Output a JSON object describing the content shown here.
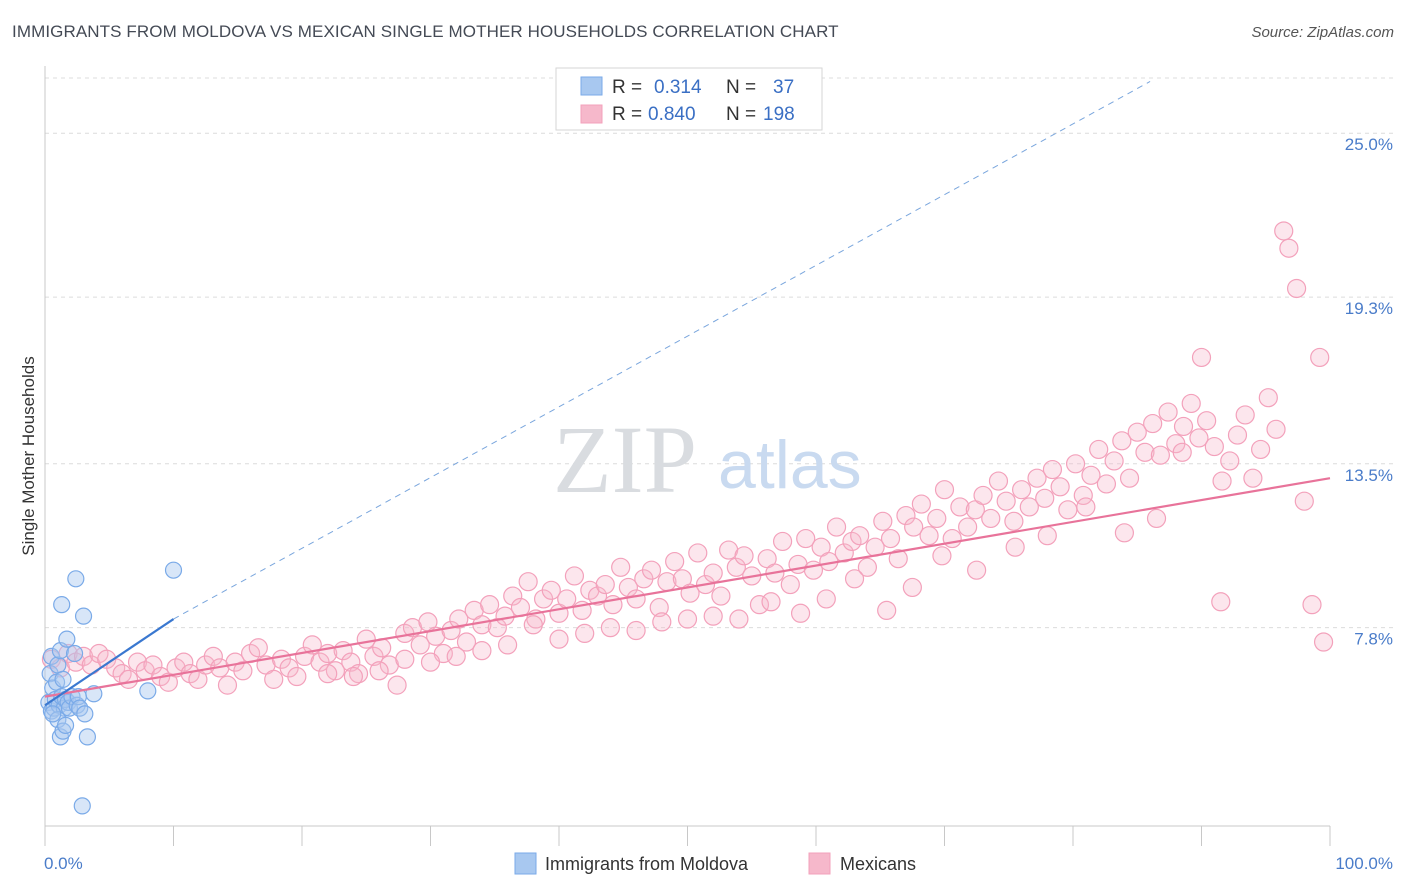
{
  "title": "IMMIGRANTS FROM MOLDOVA VS MEXICAN SINGLE MOTHER HOUSEHOLDS CORRELATION CHART",
  "source": "Source: ZipAtlas.com",
  "watermark": {
    "part1": "ZIP",
    "part2": "atlas"
  },
  "legend": {
    "r_label": "R =",
    "n_label": "N =",
    "rows": [
      {
        "r": "0.314",
        "n": "37",
        "color": "#a8c8f0"
      },
      {
        "r": "0.840",
        "n": "198",
        "color": "#f6b8cb"
      }
    ]
  },
  "bottom_legend": [
    {
      "label": "Immigrants from Moldova",
      "color": "#a8c8f0"
    },
    {
      "label": "Mexicans",
      "color": "#f6b8cb"
    }
  ],
  "chart_data": {
    "type": "scatter",
    "title": "IMMIGRANTS FROM MOLDOVA VS MEXICAN SINGLE MOTHER HOUSEHOLDS CORRELATION CHART",
    "xlabel": "",
    "ylabel": "Single Mother Households",
    "xlim": [
      0,
      100
    ],
    "ylim": [
      0.9,
      27.2
    ],
    "x_tick_labels": [
      "0.0%",
      "100.0%"
    ],
    "y_ticks": [
      7.8,
      13.5,
      19.3,
      25.0
    ],
    "y_tick_labels": [
      "7.8%",
      "13.5%",
      "19.3%",
      "25.0%"
    ],
    "grid": "horizontal dashed",
    "legend_placement": "top-center",
    "series": [
      {
        "name": "Immigrants from Moldova",
        "color": "#7aaae8",
        "line_color": "#3a78d0",
        "trend": {
          "x0": 0.0,
          "y0": 5.1,
          "x1": 10.0,
          "y1": 8.1
        },
        "trend_extension": {
          "x0": 10.0,
          "y0": 8.1,
          "x1": 86.0,
          "y1": 26.8
        },
        "points": [
          [
            0.5,
            6.8
          ],
          [
            0.4,
            6.2
          ],
          [
            0.6,
            5.7
          ],
          [
            0.3,
            5.2
          ],
          [
            0.5,
            4.9
          ],
          [
            0.7,
            5.0
          ],
          [
            0.8,
            5.3
          ],
          [
            0.9,
            5.9
          ],
          [
            1.0,
            6.5
          ],
          [
            1.1,
            5.1
          ],
          [
            1.2,
            7.0
          ],
          [
            1.3,
            5.4
          ],
          [
            1.4,
            6.0
          ],
          [
            1.5,
            5.0
          ],
          [
            1.6,
            5.3
          ],
          [
            1.8,
            5.2
          ],
          [
            1.9,
            5.0
          ],
          [
            2.1,
            5.4
          ],
          [
            1.0,
            4.6
          ],
          [
            1.2,
            4.0
          ],
          [
            1.4,
            4.2
          ],
          [
            1.6,
            4.4
          ],
          [
            1.3,
            8.6
          ],
          [
            1.7,
            7.4
          ],
          [
            2.3,
            6.9
          ],
          [
            2.4,
            9.5
          ],
          [
            2.5,
            5.1
          ],
          [
            2.6,
            5.4
          ],
          [
            2.7,
            5.0
          ],
          [
            3.0,
            8.2
          ],
          [
            3.1,
            4.8
          ],
          [
            3.3,
            4.0
          ],
          [
            3.8,
            5.5
          ],
          [
            0.6,
            4.8
          ],
          [
            2.9,
            1.6
          ],
          [
            10.0,
            9.8
          ],
          [
            8.0,
            5.6
          ]
        ]
      },
      {
        "name": "Mexicans",
        "color": "#f3a1bb",
        "line_color": "#e8739a",
        "trend": {
          "x0": 0.0,
          "y0": 5.4,
          "x1": 100.0,
          "y1": 13.0
        },
        "points": [
          [
            0.5,
            6.7
          ],
          [
            1.2,
            6.4
          ],
          [
            1.8,
            6.9
          ],
          [
            2.4,
            6.6
          ],
          [
            3.0,
            6.8
          ],
          [
            3.6,
            6.5
          ],
          [
            4.2,
            6.9
          ],
          [
            4.8,
            6.7
          ],
          [
            5.5,
            6.4
          ],
          [
            6.0,
            6.2
          ],
          [
            6.5,
            6.0
          ],
          [
            7.2,
            6.6
          ],
          [
            7.8,
            6.3
          ],
          [
            8.4,
            6.5
          ],
          [
            9.0,
            6.1
          ],
          [
            9.6,
            5.9
          ],
          [
            10.2,
            6.4
          ],
          [
            10.8,
            6.6
          ],
          [
            11.3,
            6.2
          ],
          [
            11.9,
            6.0
          ],
          [
            12.5,
            6.5
          ],
          [
            13.1,
            6.8
          ],
          [
            13.6,
            6.4
          ],
          [
            14.2,
            5.8
          ],
          [
            14.8,
            6.6
          ],
          [
            15.4,
            6.3
          ],
          [
            16.0,
            6.9
          ],
          [
            16.6,
            7.1
          ],
          [
            17.2,
            6.5
          ],
          [
            17.8,
            6.0
          ],
          [
            18.4,
            6.7
          ],
          [
            19.0,
            6.4
          ],
          [
            19.6,
            6.1
          ],
          [
            20.2,
            6.8
          ],
          [
            20.8,
            7.2
          ],
          [
            21.4,
            6.6
          ],
          [
            22.0,
            6.9
          ],
          [
            22.6,
            6.3
          ],
          [
            23.2,
            7.0
          ],
          [
            23.8,
            6.6
          ],
          [
            24.4,
            6.2
          ],
          [
            25.0,
            7.4
          ],
          [
            25.6,
            6.8
          ],
          [
            26.2,
            7.1
          ],
          [
            26.8,
            6.5
          ],
          [
            27.4,
            5.8
          ],
          [
            28.0,
            7.6
          ],
          [
            28.6,
            7.8
          ],
          [
            29.2,
            7.2
          ],
          [
            29.8,
            8.0
          ],
          [
            30.4,
            7.5
          ],
          [
            31.0,
            6.9
          ],
          [
            31.6,
            7.7
          ],
          [
            32.2,
            8.1
          ],
          [
            32.8,
            7.3
          ],
          [
            33.4,
            8.4
          ],
          [
            34.0,
            7.9
          ],
          [
            34.6,
            8.6
          ],
          [
            35.2,
            7.8
          ],
          [
            35.8,
            8.2
          ],
          [
            36.4,
            8.9
          ],
          [
            37.0,
            8.5
          ],
          [
            37.6,
            9.4
          ],
          [
            38.2,
            8.1
          ],
          [
            38.8,
            8.8
          ],
          [
            39.4,
            9.1
          ],
          [
            40.0,
            8.3
          ],
          [
            40.6,
            8.8
          ],
          [
            41.2,
            9.6
          ],
          [
            41.8,
            8.4
          ],
          [
            42.4,
            9.1
          ],
          [
            43.0,
            8.9
          ],
          [
            43.6,
            9.3
          ],
          [
            44.2,
            8.6
          ],
          [
            44.8,
            9.9
          ],
          [
            45.4,
            9.2
          ],
          [
            46.0,
            8.8
          ],
          [
            46.6,
            9.5
          ],
          [
            47.2,
            9.8
          ],
          [
            47.8,
            8.5
          ],
          [
            48.4,
            9.4
          ],
          [
            49.0,
            10.1
          ],
          [
            49.6,
            9.5
          ],
          [
            50.2,
            9.0
          ],
          [
            50.8,
            10.4
          ],
          [
            51.4,
            9.3
          ],
          [
            52.0,
            9.7
          ],
          [
            52.6,
            8.9
          ],
          [
            53.2,
            10.5
          ],
          [
            53.8,
            9.9
          ],
          [
            54.4,
            10.3
          ],
          [
            55.0,
            9.6
          ],
          [
            55.6,
            8.6
          ],
          [
            56.2,
            10.2
          ],
          [
            56.8,
            9.7
          ],
          [
            57.4,
            10.8
          ],
          [
            58.0,
            9.3
          ],
          [
            58.6,
            10.0
          ],
          [
            59.2,
            10.9
          ],
          [
            59.8,
            9.8
          ],
          [
            60.4,
            10.6
          ],
          [
            61.0,
            10.1
          ],
          [
            61.6,
            11.3
          ],
          [
            62.2,
            10.4
          ],
          [
            62.8,
            10.8
          ],
          [
            63.4,
            11.0
          ],
          [
            64.0,
            9.9
          ],
          [
            64.6,
            10.6
          ],
          [
            65.2,
            11.5
          ],
          [
            65.8,
            10.9
          ],
          [
            66.4,
            10.2
          ],
          [
            67.0,
            11.7
          ],
          [
            67.6,
            11.3
          ],
          [
            68.2,
            12.1
          ],
          [
            68.8,
            11.0
          ],
          [
            69.4,
            11.6
          ],
          [
            70.0,
            12.6
          ],
          [
            70.6,
            10.9
          ],
          [
            71.2,
            12.0
          ],
          [
            71.8,
            11.3
          ],
          [
            72.4,
            11.9
          ],
          [
            73.0,
            12.4
          ],
          [
            73.6,
            11.6
          ],
          [
            74.2,
            12.9
          ],
          [
            74.8,
            12.2
          ],
          [
            75.4,
            11.5
          ],
          [
            76.0,
            12.6
          ],
          [
            76.6,
            12.0
          ],
          [
            77.2,
            13.0
          ],
          [
            77.8,
            12.3
          ],
          [
            78.4,
            13.3
          ],
          [
            79.0,
            12.7
          ],
          [
            79.6,
            11.9
          ],
          [
            80.2,
            13.5
          ],
          [
            80.8,
            12.4
          ],
          [
            81.4,
            13.1
          ],
          [
            82.0,
            14.0
          ],
          [
            82.6,
            12.8
          ],
          [
            83.2,
            13.6
          ],
          [
            83.8,
            14.3
          ],
          [
            84.4,
            13.0
          ],
          [
            85.0,
            14.6
          ],
          [
            85.6,
            13.9
          ],
          [
            86.2,
            14.9
          ],
          [
            86.8,
            13.8
          ],
          [
            87.4,
            15.3
          ],
          [
            88.0,
            14.2
          ],
          [
            88.6,
            14.8
          ],
          [
            89.2,
            15.6
          ],
          [
            89.8,
            14.4
          ],
          [
            90.4,
            15.0
          ],
          [
            91.0,
            14.1
          ],
          [
            91.6,
            12.9
          ],
          [
            92.2,
            13.6
          ],
          [
            92.8,
            14.5
          ],
          [
            93.4,
            15.2
          ],
          [
            94.0,
            13.0
          ],
          [
            94.6,
            14.0
          ],
          [
            95.2,
            15.8
          ],
          [
            95.8,
            14.7
          ],
          [
            96.4,
            21.6
          ],
          [
            96.8,
            21.0
          ],
          [
            97.4,
            19.6
          ],
          [
            98.0,
            12.2
          ],
          [
            98.6,
            8.6
          ],
          [
            99.2,
            17.2
          ],
          [
            99.5,
            7.3
          ],
          [
            90.0,
            17.2
          ],
          [
            91.5,
            8.7
          ],
          [
            88.5,
            13.9
          ],
          [
            86.5,
            11.6
          ],
          [
            84.0,
            11.1
          ],
          [
            81.0,
            12.0
          ],
          [
            78.0,
            11.0
          ],
          [
            75.5,
            10.6
          ],
          [
            72.5,
            9.8
          ],
          [
            69.8,
            10.3
          ],
          [
            67.5,
            9.2
          ],
          [
            65.5,
            8.4
          ],
          [
            63.0,
            9.5
          ],
          [
            60.8,
            8.8
          ],
          [
            58.8,
            8.3
          ],
          [
            56.5,
            8.7
          ],
          [
            54.0,
            8.1
          ],
          [
            52.0,
            8.2
          ],
          [
            50.0,
            8.1
          ],
          [
            48.0,
            8.0
          ],
          [
            46.0,
            7.7
          ],
          [
            44.0,
            7.8
          ],
          [
            42.0,
            7.6
          ],
          [
            40.0,
            7.4
          ],
          [
            38.0,
            7.9
          ],
          [
            36.0,
            7.2
          ],
          [
            34.0,
            7.0
          ],
          [
            32.0,
            6.8
          ],
          [
            30.0,
            6.6
          ],
          [
            28.0,
            6.7
          ],
          [
            26.0,
            6.3
          ],
          [
            24.0,
            6.1
          ],
          [
            22.0,
            6.2
          ]
        ]
      }
    ]
  }
}
